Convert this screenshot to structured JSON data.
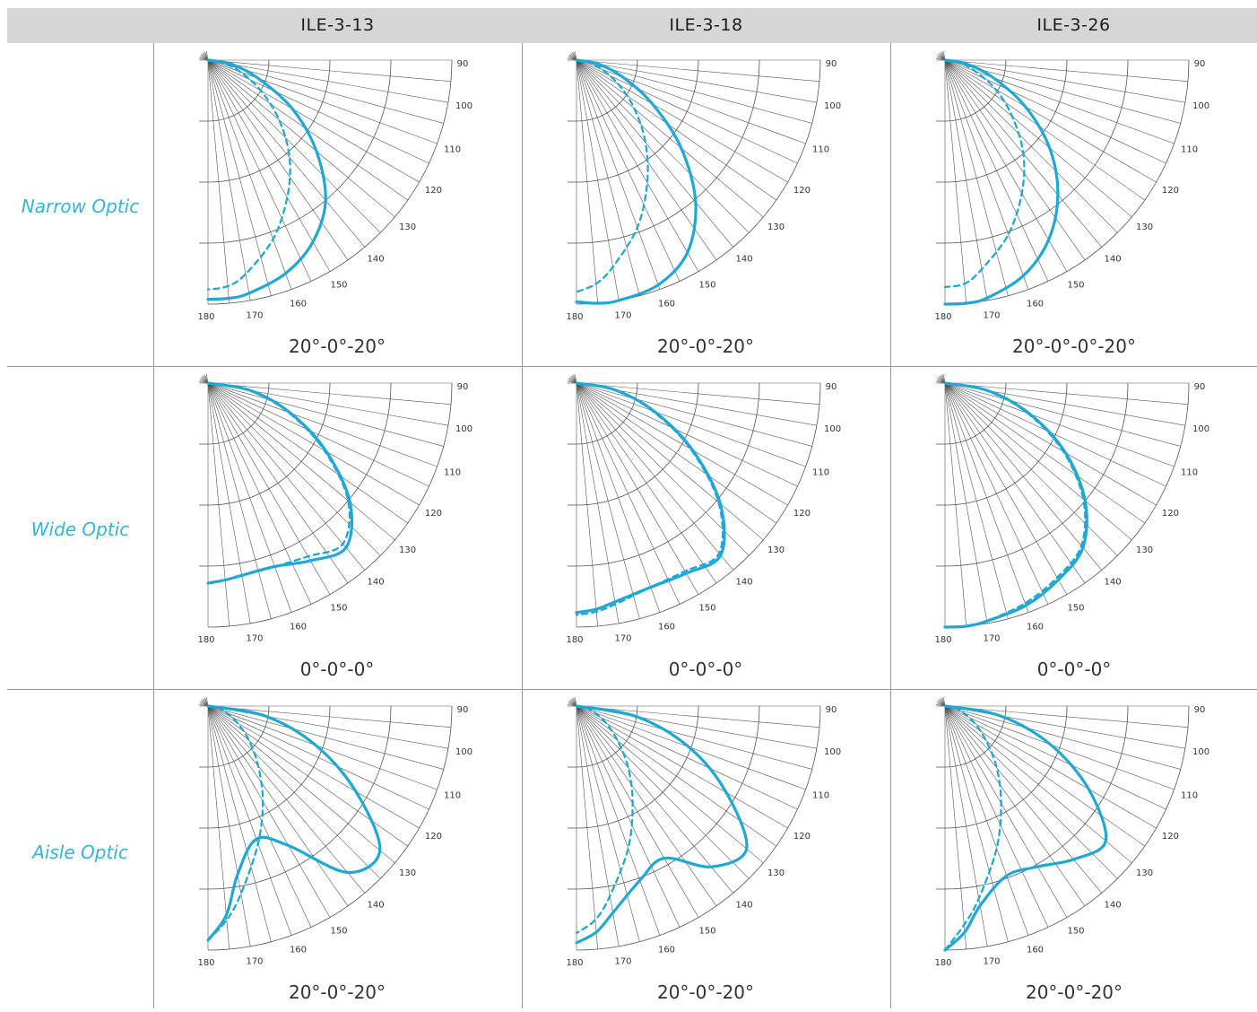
{
  "header": {
    "columns": [
      "ILE-3-13",
      "ILE-3-18",
      "ILE-3-26"
    ]
  },
  "rows": [
    {
      "label": "Narrow Optic",
      "captions": [
        "20°-0°-20°",
        "20°-0°-20°",
        "20°-0°-0°-20°"
      ]
    },
    {
      "label": "Wide Optic",
      "captions": [
        "0°-0°-0°",
        "0°-0°-0°",
        "0°-0°-0°"
      ]
    },
    {
      "label": "Aisle Optic",
      "captions": [
        "20°-0°-20°",
        "20°-0°-20°",
        "20°-0°-20°"
      ]
    }
  ],
  "colors": {
    "curve": "#1ea8d6",
    "label": "#35b3db",
    "grid": "#555555",
    "header_bg": "#d6d6d6"
  },
  "chart_data": {
    "type": "polar",
    "angle_ticks": [
      90,
      100,
      110,
      120,
      130,
      140,
      150,
      160,
      170,
      180
    ],
    "angle_range": [
      90,
      180
    ],
    "series_styles": [
      "solid",
      "dashed"
    ],
    "charts": [
      {
        "row": "Narrow Optic",
        "column": "ILE-3-13",
        "solid": [
          [
            90,
            0
          ],
          [
            100,
            0.1
          ],
          [
            110,
            0.22
          ],
          [
            120,
            0.4
          ],
          [
            130,
            0.58
          ],
          [
            140,
            0.75
          ],
          [
            150,
            0.86
          ],
          [
            160,
            0.93
          ],
          [
            170,
            0.97
          ],
          [
            175,
            0.98
          ],
          [
            180,
            0.98
          ]
        ],
        "dashed": [
          [
            90,
            0
          ],
          [
            100,
            0.06
          ],
          [
            110,
            0.14
          ],
          [
            120,
            0.25
          ],
          [
            130,
            0.38
          ],
          [
            140,
            0.52
          ],
          [
            150,
            0.65
          ],
          [
            160,
            0.78
          ],
          [
            170,
            0.89
          ],
          [
            175,
            0.93
          ],
          [
            180,
            0.94
          ]
        ]
      },
      {
        "row": "Narrow Optic",
        "column": "ILE-3-18",
        "solid": [
          [
            90,
            0
          ],
          [
            100,
            0.09
          ],
          [
            110,
            0.2
          ],
          [
            120,
            0.36
          ],
          [
            130,
            0.56
          ],
          [
            140,
            0.76
          ],
          [
            150,
            0.91
          ],
          [
            160,
            0.98
          ],
          [
            170,
            1.0
          ],
          [
            175,
            1.0
          ],
          [
            180,
            0.99
          ]
        ],
        "dashed": [
          [
            90,
            0
          ],
          [
            100,
            0.05
          ],
          [
            110,
            0.11
          ],
          [
            120,
            0.2
          ],
          [
            130,
            0.31
          ],
          [
            140,
            0.44
          ],
          [
            150,
            0.58
          ],
          [
            160,
            0.73
          ],
          [
            170,
            0.86
          ],
          [
            175,
            0.92
          ],
          [
            180,
            0.95
          ]
        ]
      },
      {
        "row": "Narrow Optic",
        "column": "ILE-3-26",
        "solid": [
          [
            90,
            0
          ],
          [
            100,
            0.09
          ],
          [
            110,
            0.21
          ],
          [
            120,
            0.38
          ],
          [
            130,
            0.56
          ],
          [
            140,
            0.72
          ],
          [
            150,
            0.85
          ],
          [
            160,
            0.94
          ],
          [
            170,
            0.99
          ],
          [
            175,
            1.0
          ],
          [
            180,
            1.0
          ]
        ],
        "dashed": [
          [
            90,
            0
          ],
          [
            100,
            0.06
          ],
          [
            110,
            0.13
          ],
          [
            120,
            0.24
          ],
          [
            130,
            0.36
          ],
          [
            140,
            0.5
          ],
          [
            150,
            0.63
          ],
          [
            160,
            0.76
          ],
          [
            170,
            0.87
          ],
          [
            175,
            0.92
          ],
          [
            180,
            0.93
          ]
        ]
      },
      {
        "row": "Wide Optic",
        "column": "ILE-3-13",
        "solid": [
          [
            90,
            0
          ],
          [
            100,
            0.18
          ],
          [
            110,
            0.36
          ],
          [
            120,
            0.56
          ],
          [
            130,
            0.76
          ],
          [
            140,
            0.88
          ],
          [
            150,
            0.84
          ],
          [
            160,
            0.8
          ],
          [
            170,
            0.8
          ],
          [
            175,
            0.81
          ],
          [
            180,
            0.82
          ]
        ],
        "dashed": [
          [
            90,
            0
          ],
          [
            100,
            0.17
          ],
          [
            110,
            0.35
          ],
          [
            120,
            0.55
          ],
          [
            130,
            0.75
          ],
          [
            140,
            0.86
          ],
          [
            150,
            0.82
          ],
          [
            160,
            0.8
          ],
          [
            170,
            0.8
          ],
          [
            175,
            0.81
          ],
          [
            180,
            0.82
          ]
        ]
      },
      {
        "row": "Wide Optic",
        "column": "ILE-3-18",
        "solid": [
          [
            90,
            0
          ],
          [
            100,
            0.16
          ],
          [
            110,
            0.34
          ],
          [
            120,
            0.55
          ],
          [
            130,
            0.77
          ],
          [
            140,
            0.92
          ],
          [
            150,
            0.9
          ],
          [
            160,
            0.89
          ],
          [
            170,
            0.91
          ],
          [
            175,
            0.93
          ],
          [
            180,
            0.94
          ]
        ],
        "dashed": [
          [
            90,
            0
          ],
          [
            100,
            0.16
          ],
          [
            110,
            0.33
          ],
          [
            120,
            0.54
          ],
          [
            130,
            0.76
          ],
          [
            140,
            0.91
          ],
          [
            150,
            0.89
          ],
          [
            160,
            0.89
          ],
          [
            170,
            0.92
          ],
          [
            175,
            0.94
          ],
          [
            180,
            0.95
          ]
        ]
      },
      {
        "row": "Wide Optic",
        "column": "ILE-3-26",
        "solid": [
          [
            90,
            0
          ],
          [
            100,
            0.18
          ],
          [
            110,
            0.37
          ],
          [
            120,
            0.57
          ],
          [
            130,
            0.75
          ],
          [
            140,
            0.88
          ],
          [
            150,
            0.93
          ],
          [
            160,
            0.97
          ],
          [
            170,
            0.99
          ],
          [
            175,
            1.0
          ],
          [
            180,
            1.0
          ]
        ],
        "dashed": [
          [
            90,
            0
          ],
          [
            100,
            0.17
          ],
          [
            110,
            0.36
          ],
          [
            120,
            0.56
          ],
          [
            130,
            0.74
          ],
          [
            140,
            0.87
          ],
          [
            150,
            0.92
          ],
          [
            160,
            0.96
          ],
          [
            170,
            0.99
          ],
          [
            175,
            1.0
          ],
          [
            180,
            1.0
          ]
        ]
      },
      {
        "row": "Aisle Optic",
        "column": "ILE-3-13",
        "solid": [
          [
            90,
            0
          ],
          [
            100,
            0.24
          ],
          [
            110,
            0.47
          ],
          [
            120,
            0.7
          ],
          [
            130,
            0.92
          ],
          [
            140,
            0.89
          ],
          [
            150,
            0.66
          ],
          [
            160,
            0.58
          ],
          [
            170,
            0.7
          ],
          [
            175,
            0.86
          ],
          [
            180,
            0.96
          ]
        ],
        "dashed": [
          [
            90,
            0
          ],
          [
            100,
            0.04
          ],
          [
            110,
            0.08
          ],
          [
            120,
            0.14
          ],
          [
            130,
            0.22
          ],
          [
            140,
            0.32
          ],
          [
            150,
            0.45
          ],
          [
            160,
            0.6
          ],
          [
            170,
            0.78
          ],
          [
            175,
            0.88
          ],
          [
            180,
            0.96
          ]
        ]
      },
      {
        "row": "Aisle Optic",
        "column": "ILE-3-18",
        "solid": [
          [
            90,
            0
          ],
          [
            100,
            0.25
          ],
          [
            110,
            0.49
          ],
          [
            120,
            0.71
          ],
          [
            130,
            0.91
          ],
          [
            140,
            0.86
          ],
          [
            150,
            0.72
          ],
          [
            160,
            0.76
          ],
          [
            170,
            0.86
          ],
          [
            175,
            0.93
          ],
          [
            180,
            0.97
          ]
        ],
        "dashed": [
          [
            90,
            0
          ],
          [
            100,
            0.04
          ],
          [
            110,
            0.08
          ],
          [
            120,
            0.14
          ],
          [
            130,
            0.22
          ],
          [
            140,
            0.33
          ],
          [
            150,
            0.46
          ],
          [
            160,
            0.62
          ],
          [
            170,
            0.79
          ],
          [
            175,
            0.88
          ],
          [
            180,
            0.93
          ]
        ]
      },
      {
        "row": "Aisle Optic",
        "column": "ILE-3-26",
        "solid": [
          [
            90,
            0
          ],
          [
            100,
            0.23
          ],
          [
            110,
            0.46
          ],
          [
            120,
            0.68
          ],
          [
            130,
            0.86
          ],
          [
            140,
            0.82
          ],
          [
            150,
            0.76
          ],
          [
            160,
            0.74
          ],
          [
            170,
            0.83
          ],
          [
            175,
            0.93
          ],
          [
            180,
            1.0
          ]
        ],
        "dashed": [
          [
            90,
            0
          ],
          [
            100,
            0.04
          ],
          [
            110,
            0.08
          ],
          [
            120,
            0.14
          ],
          [
            130,
            0.22
          ],
          [
            140,
            0.33
          ],
          [
            150,
            0.46
          ],
          [
            160,
            0.62
          ],
          [
            170,
            0.8
          ],
          [
            175,
            0.9
          ],
          [
            180,
            1.0
          ]
        ]
      }
    ]
  }
}
